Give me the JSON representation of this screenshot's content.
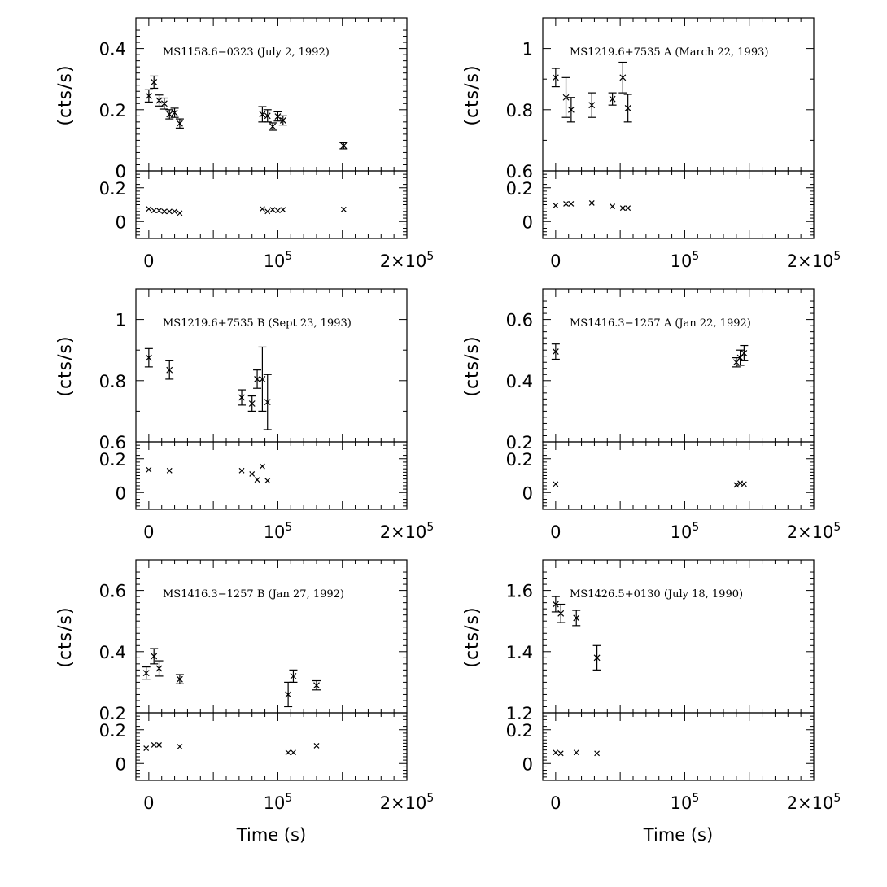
{
  "chart_data": {
    "type": "scatter",
    "ylabel": "(cts/s)",
    "xlabel": "Time (s)",
    "x_ticks": [
      {
        "value": 0,
        "label": "0"
      },
      {
        "value": 100000,
        "label": "10",
        "exponent": "5"
      },
      {
        "value": 200000,
        "label": "2×10",
        "exponent": "5"
      }
    ],
    "xlim": [
      -10000,
      200000
    ],
    "panels": [
      {
        "title": "MS1158.6−0323   (July 2, 1992)",
        "top": {
          "ylim": [
            0,
            0.5
          ],
          "yticks": [
            0,
            0.2,
            0.4
          ],
          "ytick_labels": [
            "0",
            "0.2",
            "0.4"
          ],
          "points": [
            {
              "x": 0,
              "y": 0.245,
              "err": 0.02
            },
            {
              "x": 4000,
              "y": 0.29,
              "err": 0.02
            },
            {
              "x": 8000,
              "y": 0.23,
              "err": 0.018
            },
            {
              "x": 12000,
              "y": 0.22,
              "err": 0.018
            },
            {
              "x": 16000,
              "y": 0.185,
              "err": 0.015
            },
            {
              "x": 20000,
              "y": 0.19,
              "err": 0.015
            },
            {
              "x": 24000,
              "y": 0.155,
              "err": 0.015
            },
            {
              "x": 88000,
              "y": 0.185,
              "err": 0.025
            },
            {
              "x": 92000,
              "y": 0.18,
              "err": 0.02
            },
            {
              "x": 96000,
              "y": 0.145,
              "err": 0.012
            },
            {
              "x": 100000,
              "y": 0.178,
              "err": 0.015
            },
            {
              "x": 104000,
              "y": 0.165,
              "err": 0.015
            },
            {
              "x": 151000,
              "y": 0.082,
              "err": 0.01
            }
          ]
        },
        "bottom": {
          "ylim": [
            -0.1,
            0.3
          ],
          "yticks": [
            0,
            0.2
          ],
          "ytick_labels": [
            "0",
            "0.2"
          ],
          "points": [
            {
              "x": 0,
              "y": 0.075
            },
            {
              "x": 4000,
              "y": 0.065
            },
            {
              "x": 8000,
              "y": 0.065
            },
            {
              "x": 12000,
              "y": 0.06
            },
            {
              "x": 16000,
              "y": 0.06
            },
            {
              "x": 20000,
              "y": 0.06
            },
            {
              "x": 24000,
              "y": 0.05
            },
            {
              "x": 88000,
              "y": 0.075
            },
            {
              "x": 92000,
              "y": 0.06
            },
            {
              "x": 96000,
              "y": 0.07
            },
            {
              "x": 100000,
              "y": 0.065
            },
            {
              "x": 104000,
              "y": 0.07
            },
            {
              "x": 151000,
              "y": 0.072
            }
          ]
        }
      },
      {
        "title": "MS1219.6+7535 A (March 22, 1993)",
        "top": {
          "ylim": [
            0.6,
            1.1
          ],
          "yticks": [
            0.8,
            1
          ],
          "ytick_labels": [
            "0.8",
            "1"
          ],
          "points": [
            {
              "x": 0,
              "y": 0.905,
              "err": 0.03
            },
            {
              "x": 8000,
              "y": 0.84,
              "err": 0.065
            },
            {
              "x": 12000,
              "y": 0.8,
              "err": 0.04
            },
            {
              "x": 28000,
              "y": 0.815,
              "err": 0.04
            },
            {
              "x": 44000,
              "y": 0.835,
              "err": 0.02
            },
            {
              "x": 52000,
              "y": 0.905,
              "err": 0.05
            },
            {
              "x": 56000,
              "y": 0.805,
              "err": 0.045
            }
          ]
        },
        "bottom": {
          "ylim": [
            -0.1,
            0.3
          ],
          "yticks": [
            0,
            0.2
          ],
          "ytick_labels": [
            "0",
            "0.2"
          ],
          "points": [
            {
              "x": 0,
              "y": 0.095
            },
            {
              "x": 8000,
              "y": 0.105
            },
            {
              "x": 12000,
              "y": 0.105
            },
            {
              "x": 28000,
              "y": 0.11
            },
            {
              "x": 44000,
              "y": 0.09
            },
            {
              "x": 52000,
              "y": 0.08
            },
            {
              "x": 56000,
              "y": 0.08
            }
          ]
        },
        "ytick_label_0": "0.6"
      },
      {
        "title": "MS1219.6+7535 B   (Sept 23, 1993)",
        "top": {
          "ylim": [
            0.6,
            1.1
          ],
          "yticks": [
            0.8,
            1
          ],
          "ytick_labels": [
            "0.8",
            "1"
          ],
          "points": [
            {
              "x": 0,
              "y": 0.875,
              "err": 0.03
            },
            {
              "x": 16000,
              "y": 0.835,
              "err": 0.03
            },
            {
              "x": 72000,
              "y": 0.745,
              "err": 0.025
            },
            {
              "x": 80000,
              "y": 0.725,
              "err": 0.025
            },
            {
              "x": 84000,
              "y": 0.805,
              "err": 0.03
            },
            {
              "x": 88000,
              "y": 0.805,
              "err": 0.105
            },
            {
              "x": 92000,
              "y": 0.73,
              "err": 0.09
            }
          ]
        },
        "bottom": {
          "ylim": [
            -0.1,
            0.3
          ],
          "yticks": [
            0,
            0.2
          ],
          "ytick_labels": [
            "0",
            "0.2"
          ],
          "points": [
            {
              "x": 0,
              "y": 0.135
            },
            {
              "x": 16000,
              "y": 0.13
            },
            {
              "x": 72000,
              "y": 0.13
            },
            {
              "x": 80000,
              "y": 0.11
            },
            {
              "x": 84000,
              "y": 0.075
            },
            {
              "x": 88000,
              "y": 0.155
            },
            {
              "x": 92000,
              "y": 0.07
            }
          ]
        },
        "ytick_label_0": "0.6"
      },
      {
        "title": "MS1416.3−1257 A   (Jan 22, 1992)",
        "top": {
          "ylim": [
            0.2,
            0.7
          ],
          "yticks": [
            0.4,
            0.6
          ],
          "ytick_labels": [
            "0.4",
            "0.6"
          ],
          "points": [
            {
              "x": 0,
              "y": 0.495,
              "err": 0.025
            },
            {
              "x": 140000,
              "y": 0.46,
              "err": 0.015
            },
            {
              "x": 143000,
              "y": 0.475,
              "err": 0.025
            },
            {
              "x": 146000,
              "y": 0.49,
              "err": 0.025
            }
          ]
        },
        "bottom": {
          "ylim": [
            -0.1,
            0.3
          ],
          "yticks": [
            0,
            0.2
          ],
          "ytick_labels": [
            "0",
            "0.2"
          ],
          "points": [
            {
              "x": 0,
              "y": 0.05
            },
            {
              "x": 140000,
              "y": 0.045
            },
            {
              "x": 143000,
              "y": 0.055
            },
            {
              "x": 146000,
              "y": 0.05
            }
          ]
        },
        "ytick_label_0": "0.2"
      },
      {
        "title": "MS1416.3−1257 B (Jan 27, 1992)",
        "top": {
          "ylim": [
            0.2,
            0.7
          ],
          "yticks": [
            0.4,
            0.6
          ],
          "ytick_labels": [
            "0.4",
            "0.6"
          ],
          "points": [
            {
              "x": -2000,
              "y": 0.33,
              "err": 0.02
            },
            {
              "x": 4000,
              "y": 0.385,
              "err": 0.025
            },
            {
              "x": 8000,
              "y": 0.345,
              "err": 0.025
            },
            {
              "x": 24000,
              "y": 0.31,
              "err": 0.015
            },
            {
              "x": 108000,
              "y": 0.26,
              "err": 0.04
            },
            {
              "x": 112000,
              "y": 0.32,
              "err": 0.02
            },
            {
              "x": 130000,
              "y": 0.29,
              "err": 0.015
            }
          ]
        },
        "bottom": {
          "ylim": [
            -0.1,
            0.3
          ],
          "yticks": [
            0,
            0.2
          ],
          "ytick_labels": [
            "0",
            "0.2"
          ],
          "points": [
            {
              "x": -2000,
              "y": 0.09
            },
            {
              "x": 4000,
              "y": 0.11
            },
            {
              "x": 8000,
              "y": 0.11
            },
            {
              "x": 24000,
              "y": 0.1
            },
            {
              "x": 108000,
              "y": 0.065
            },
            {
              "x": 112000,
              "y": 0.065
            },
            {
              "x": 130000,
              "y": 0.105
            }
          ]
        },
        "ytick_label_0": "0.2"
      },
      {
        "title": "MS1426.5+0130   (July 18, 1990)",
        "top": {
          "ylim": [
            1.2,
            1.7
          ],
          "yticks": [
            1.4,
            1.6
          ],
          "ytick_labels": [
            "1.4",
            "1.6"
          ],
          "points": [
            {
              "x": 0,
              "y": 1.555,
              "err": 0.025
            },
            {
              "x": 4000,
              "y": 1.525,
              "err": 0.03
            },
            {
              "x": 16000,
              "y": 1.51,
              "err": 0.025
            },
            {
              "x": 32000,
              "y": 1.38,
              "err": 0.04
            }
          ]
        },
        "bottom": {
          "ylim": [
            -0.1,
            0.3
          ],
          "yticks": [
            0,
            0.2
          ],
          "ytick_labels": [
            "0",
            "0.2"
          ],
          "points": [
            {
              "x": 0,
              "y": 0.065
            },
            {
              "x": 4000,
              "y": 0.06
            },
            {
              "x": 16000,
              "y": 0.065
            },
            {
              "x": 32000,
              "y": 0.06
            }
          ]
        },
        "ytick_label_0": "1.2"
      }
    ]
  }
}
